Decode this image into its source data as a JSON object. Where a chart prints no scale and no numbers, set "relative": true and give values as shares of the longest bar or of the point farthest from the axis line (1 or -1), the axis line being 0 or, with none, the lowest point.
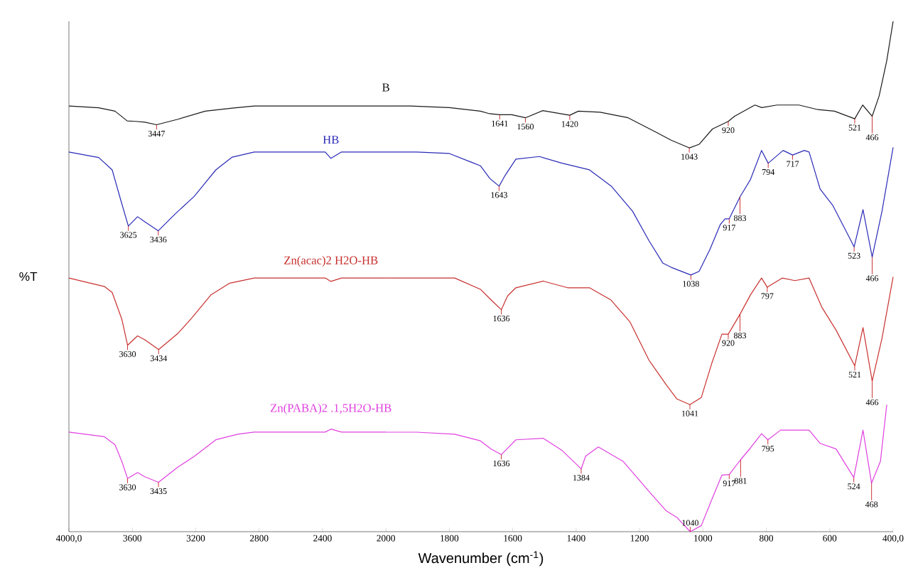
{
  "chart_data": [
    {
      "type": "line",
      "relative": true,
      "ylabel": "%T",
      "legend": false,
      "tick_labels": "x",
      "xlim": [
        4000,
        2000
      ],
      "xticks": [
        {
          "value": 4000,
          "label": "4000,0"
        },
        3600,
        3200,
        2800,
        2400,
        2000
      ],
      "series": [
        {
          "name": "B",
          "color": "#1a1a1a",
          "x": [
            4000,
            3812,
            3709,
            3632,
            3579,
            3521,
            3447,
            3312,
            3140,
            2970,
            2831,
            2000
          ],
          "values": [
            1.0,
            0.996,
            0.988,
            0.965,
            0.964,
            0.962,
            0.956,
            0.969,
            0.988,
            0.995,
            1.0,
            1.0
          ]
        },
        {
          "name": "HB",
          "color": "#2a2ab8",
          "x": [
            4000,
            3812,
            3727,
            3673,
            3625,
            3567,
            3521,
            3436,
            3328,
            3209,
            3073,
            2970,
            2831,
            2383,
            2347,
            2280,
            2000
          ],
          "values": [
            0.892,
            0.879,
            0.85,
            0.779,
            0.718,
            0.74,
            0.728,
            0.707,
            0.747,
            0.788,
            0.85,
            0.88,
            0.892,
            0.892,
            0.877,
            0.892,
            0.892
          ]
        },
        {
          "name": "Zn(acac)2 H2O-HB",
          "color": "#c8312f",
          "x": [
            4000,
            3776,
            3727,
            3666,
            3630,
            3567,
            3521,
            3434,
            3312,
            3225,
            3105,
            2985,
            2831,
            2383,
            2347,
            2280,
            2000
          ],
          "values": [
            0.596,
            0.576,
            0.562,
            0.499,
            0.438,
            0.46,
            0.451,
            0.428,
            0.466,
            0.502,
            0.556,
            0.584,
            0.596,
            0.596,
            0.588,
            0.596,
            0.596
          ]
        },
        {
          "name": "Zn(PABA)2 .1,5H2O-HB",
          "color": "#e040e0",
          "x": [
            4000,
            3776,
            3709,
            3666,
            3630,
            3567,
            3521,
            3435,
            3312,
            3209,
            3073,
            2935,
            2831,
            2383,
            2347,
            2280,
            2000
          ],
          "values": [
            0.234,
            0.223,
            0.204,
            0.165,
            0.125,
            0.139,
            0.129,
            0.116,
            0.152,
            0.177,
            0.216,
            0.229,
            0.234,
            0.234,
            0.241,
            0.234,
            0.234
          ]
        }
      ],
      "annotations": [
        {
          "text": "3447",
          "x": 3447,
          "y": 0.956
        },
        {
          "text": "3625",
          "x": 3625,
          "y": 0.718
        },
        {
          "text": "3436",
          "x": 3436,
          "y": 0.707
        },
        {
          "text": "3630",
          "x": 3630,
          "y": 0.438
        },
        {
          "text": "3434",
          "x": 3434,
          "y": 0.428
        },
        {
          "text": "3630",
          "x": 3630,
          "y": 0.125
        },
        {
          "text": "3435",
          "x": 3435,
          "y": 0.116
        }
      ]
    },
    {
      "type": "line",
      "relative": true,
      "xlabel": "Wavenumber (cm$^{-1}$)",
      "legend": false,
      "tick_labels": "x",
      "xlim": [
        2000,
        400
      ],
      "xticks": [
        1800,
        1600,
        1400,
        1200,
        1000,
        800,
        600,
        {
          "value": 400,
          "label": "400,0"
        }
      ],
      "series": [
        {
          "color": "#1a1a1a",
          "x": [
            2000,
            1922,
            1800,
            1702,
            1673,
            1641,
            1603,
            1560,
            1505,
            1420,
            1393,
            1324,
            1236,
            1152,
            1100,
            1043,
            1012,
            970,
            920,
            900,
            836,
            814,
            766,
            697,
            637,
            585,
            521,
            496,
            466,
            444,
            420,
            400
          ],
          "values": [
            0.834,
            0.834,
            0.831,
            0.824,
            0.819,
            0.817,
            0.817,
            0.811,
            0.825,
            0.816,
            0.824,
            0.822,
            0.811,
            0.784,
            0.767,
            0.752,
            0.759,
            0.789,
            0.804,
            0.814,
            0.836,
            0.831,
            0.836,
            0.836,
            0.827,
            0.824,
            0.809,
            0.836,
            0.814,
            0.854,
            0.923,
            1.0
          ]
        },
        {
          "color": "#2a2ab8",
          "x": [
            2000,
            1904,
            1800,
            1731,
            1702,
            1672,
            1643,
            1624,
            1590,
            1516,
            1444,
            1358,
            1289,
            1222,
            1170,
            1126,
            1100,
            1038,
            1012,
            978,
            945,
            930,
            917,
            883,
            850,
            815,
            794,
            747,
            717,
            680,
            665,
            630,
            590,
            550,
            523,
            495,
            466,
            435,
            400
          ],
          "values": [
            0.744,
            0.744,
            0.741,
            0.724,
            0.717,
            0.692,
            0.677,
            0.698,
            0.73,
            0.735,
            0.722,
            0.709,
            0.677,
            0.628,
            0.57,
            0.526,
            0.518,
            0.503,
            0.51,
            0.553,
            0.602,
            0.613,
            0.613,
            0.656,
            0.69,
            0.747,
            0.722,
            0.747,
            0.738,
            0.747,
            0.744,
            0.671,
            0.639,
            0.591,
            0.558,
            0.631,
            0.538,
            0.628,
            0.753
          ]
        },
        {
          "color": "#c8312f",
          "x": [
            2000,
            1783,
            1702,
            1668,
            1636,
            1616,
            1590,
            1504,
            1427,
            1358,
            1290,
            1230,
            1170,
            1116,
            1082,
            1041,
            1005,
            972,
            940,
            920,
            883,
            850,
            815,
            797,
            750,
            710,
            665,
            625,
            580,
            521,
            495,
            466,
            435,
            400
          ],
          "values": [
            0.497,
            0.497,
            0.475,
            0.454,
            0.435,
            0.462,
            0.478,
            0.491,
            0.478,
            0.478,
            0.454,
            0.411,
            0.336,
            0.288,
            0.26,
            0.249,
            0.263,
            0.33,
            0.387,
            0.387,
            0.426,
            0.464,
            0.497,
            0.479,
            0.497,
            0.492,
            0.497,
            0.44,
            0.395,
            0.325,
            0.4,
            0.295,
            0.379,
            0.499
          ]
        },
        {
          "color": "#e040e0",
          "x": [
            2000,
            1904,
            1783,
            1702,
            1668,
            1636,
            1590,
            1504,
            1444,
            1384,
            1370,
            1330,
            1252,
            1170,
            1116,
            1082,
            1040,
            1005,
            972,
            940,
            917,
            881,
            850,
            815,
            795,
            755,
            665,
            630,
            580,
            524,
            495,
            468,
            440,
            420
          ],
          "values": [
            0.195,
            0.195,
            0.191,
            0.178,
            0.162,
            0.151,
            0.18,
            0.183,
            0.159,
            0.123,
            0.148,
            0.166,
            0.138,
            0.079,
            0.041,
            0.028,
            0.0,
            0.012,
            0.063,
            0.111,
            0.112,
            0.141,
            0.164,
            0.192,
            0.18,
            0.199,
            0.199,
            0.173,
            0.162,
            0.106,
            0.199,
            0.095,
            0.138,
            0.249
          ]
        }
      ],
      "annotations": [
        {
          "text": "1641",
          "x": 1641,
          "y": 0.817
        },
        {
          "text": "1560",
          "x": 1560,
          "y": 0.811
        },
        {
          "text": "1420",
          "x": 1420,
          "y": 0.816
        },
        {
          "text": "1043",
          "x": 1043,
          "y": 0.752
        },
        {
          "text": "920",
          "x": 920,
          "y": 0.804
        },
        {
          "text": "521",
          "x": 521,
          "y": 0.809
        },
        {
          "text": "466",
          "x": 466,
          "y": 0.814
        },
        {
          "text": "1643",
          "x": 1643,
          "y": 0.677
        },
        {
          "text": "1038",
          "x": 1038,
          "y": 0.503
        },
        {
          "text": "917",
          "x": 917,
          "y": 0.613
        },
        {
          "text": "883",
          "x": 883,
          "y": 0.656
        },
        {
          "text": "794",
          "x": 794,
          "y": 0.722
        },
        {
          "text": "717",
          "x": 717,
          "y": 0.738
        },
        {
          "text": "523",
          "x": 523,
          "y": 0.558
        },
        {
          "text": "466",
          "x": 466,
          "y": 0.538
        },
        {
          "text": "1636",
          "x": 1636,
          "y": 0.435
        },
        {
          "text": "1041",
          "x": 1041,
          "y": 0.249
        },
        {
          "text": "920",
          "x": 920,
          "y": 0.387
        },
        {
          "text": "883",
          "x": 883,
          "y": 0.426
        },
        {
          "text": "797",
          "x": 797,
          "y": 0.479
        },
        {
          "text": "521",
          "x": 521,
          "y": 0.325
        },
        {
          "text": "466",
          "x": 466,
          "y": 0.295
        },
        {
          "text": "1636",
          "x": 1636,
          "y": 0.151
        },
        {
          "text": "1384",
          "x": 1384,
          "y": 0.123
        },
        {
          "text": "1040",
          "x": 1040,
          "y": 0.0
        },
        {
          "text": "917",
          "x": 917,
          "y": 0.112
        },
        {
          "text": "881",
          "x": 881,
          "y": 0.141
        },
        {
          "text": "795",
          "x": 795,
          "y": 0.18
        },
        {
          "text": "524",
          "x": 524,
          "y": 0.106
        },
        {
          "text": "468",
          "x": 468,
          "y": 0.095
        }
      ]
    }
  ]
}
